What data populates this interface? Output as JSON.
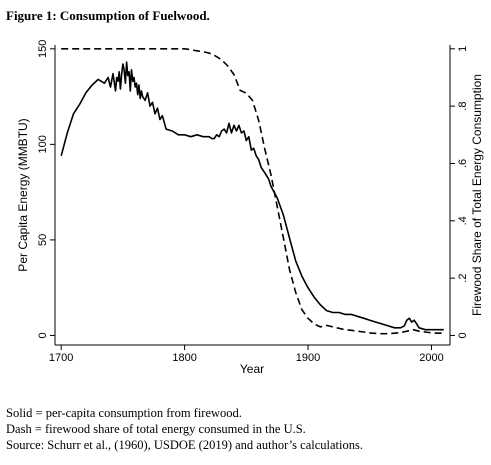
{
  "figure_title": "Figure 1: Consumption of Fuelwood.",
  "notes": [
    "Solid = per-capita consumption from firewood.",
    "Dash = firewood share of total energy consumed in the U.S.",
    "Source: Schurr et al., (1960), USDOE (2019) and author’s calculations."
  ],
  "chart_data": {
    "type": "line",
    "title": "Figure 1: Consumption of Fuelwood.",
    "xlabel": "Year",
    "ylabel": "Per Capita Energy (MMBTU)",
    "y2label": "Firewood Share of Total Energy Consumption",
    "xlim": [
      1695,
      2015
    ],
    "ylim": [
      -5,
      152
    ],
    "y2lim": [
      -0.0333,
      1.0133
    ],
    "x_ticks": [
      1700,
      1800,
      1900,
      2000
    ],
    "y_ticks": [
      0,
      50,
      100,
      150
    ],
    "y2_ticks": [
      0,
      0.2,
      0.4,
      0.6,
      0.8,
      1
    ],
    "y2_tick_labels": [
      "0",
      ".2",
      ".4",
      ".6",
      ".8",
      "1"
    ],
    "grid": false,
    "series": [
      {
        "style": "solid",
        "axis": "left",
        "x": [
          1700,
          1705,
          1710,
          1715,
          1720,
          1725,
          1730,
          1735,
          1738,
          1740,
          1742,
          1744,
          1745,
          1746,
          1747,
          1748,
          1749,
          1750,
          1751,
          1752,
          1753,
          1754,
          1755,
          1756,
          1757,
          1758,
          1759,
          1760,
          1761,
          1762,
          1763,
          1764,
          1765,
          1766,
          1768,
          1770,
          1772,
          1774,
          1776,
          1778,
          1780,
          1782,
          1785,
          1790,
          1795,
          1800,
          1805,
          1810,
          1815,
          1820,
          1822,
          1824,
          1826,
          1828,
          1830,
          1832,
          1834,
          1836,
          1838,
          1840,
          1842,
          1844,
          1846,
          1848,
          1850,
          1852,
          1854,
          1856,
          1858,
          1860,
          1862,
          1864,
          1866,
          1868,
          1870,
          1875,
          1880,
          1885,
          1890,
          1895,
          1900,
          1905,
          1910,
          1915,
          1920,
          1925,
          1930,
          1935,
          1940,
          1945,
          1950,
          1955,
          1960,
          1965,
          1970,
          1975,
          1978,
          1980,
          1982,
          1984,
          1986,
          1988,
          1990,
          1995,
          2000,
          2005,
          2010
        ],
        "y": [
          94,
          106,
          116,
          121,
          127,
          131,
          134,
          132,
          135,
          130,
          137,
          128,
          135,
          133,
          138,
          129,
          137,
          142,
          139,
          132,
          143,
          136,
          138,
          128,
          139,
          133,
          135,
          130,
          132,
          126,
          131,
          124,
          128,
          125,
          123,
          127,
          120,
          122,
          116,
          119,
          113,
          115,
          108,
          107,
          105,
          105,
          104,
          105,
          104,
          104,
          103,
          103,
          105,
          104,
          107,
          108,
          106,
          111,
          106,
          110,
          107,
          110,
          106,
          107,
          102,
          104,
          97,
          98,
          94,
          92,
          88,
          86,
          84,
          82,
          78,
          72,
          63,
          51,
          39,
          31,
          25,
          20,
          16,
          13,
          12,
          12,
          11,
          11,
          10,
          9,
          8,
          7,
          6,
          5,
          4,
          4,
          5,
          8,
          9,
          7,
          8,
          6,
          4,
          3,
          3,
          3,
          3
        ]
      },
      {
        "style": "dashed",
        "axis": "right",
        "x": [
          1700,
          1720,
          1740,
          1760,
          1780,
          1800,
          1805,
          1810,
          1815,
          1820,
          1825,
          1830,
          1835,
          1840,
          1845,
          1850,
          1855,
          1860,
          1865,
          1870,
          1875,
          1880,
          1885,
          1890,
          1895,
          1900,
          1905,
          1910,
          1915,
          1920,
          1925,
          1930,
          1935,
          1940,
          1945,
          1950,
          1955,
          1960,
          1965,
          1970,
          1975,
          1980,
          1985,
          1990,
          1995,
          2000,
          2005,
          2010
        ],
        "y": [
          1,
          1,
          1,
          1,
          1,
          1,
          0.997,
          0.993,
          0.99,
          0.985,
          0.975,
          0.962,
          0.94,
          0.91,
          0.855,
          0.845,
          0.82,
          0.75,
          0.65,
          0.56,
          0.45,
          0.34,
          0.23,
          0.15,
          0.09,
          0.06,
          0.04,
          0.03,
          0.035,
          0.03,
          0.025,
          0.02,
          0.018,
          0.015,
          0.012,
          0.009,
          0.007,
          0.006,
          0.006,
          0.008,
          0.01,
          0.015,
          0.02,
          0.015,
          0.012,
          0.009,
          0.008,
          0.008
        ]
      }
    ]
  }
}
